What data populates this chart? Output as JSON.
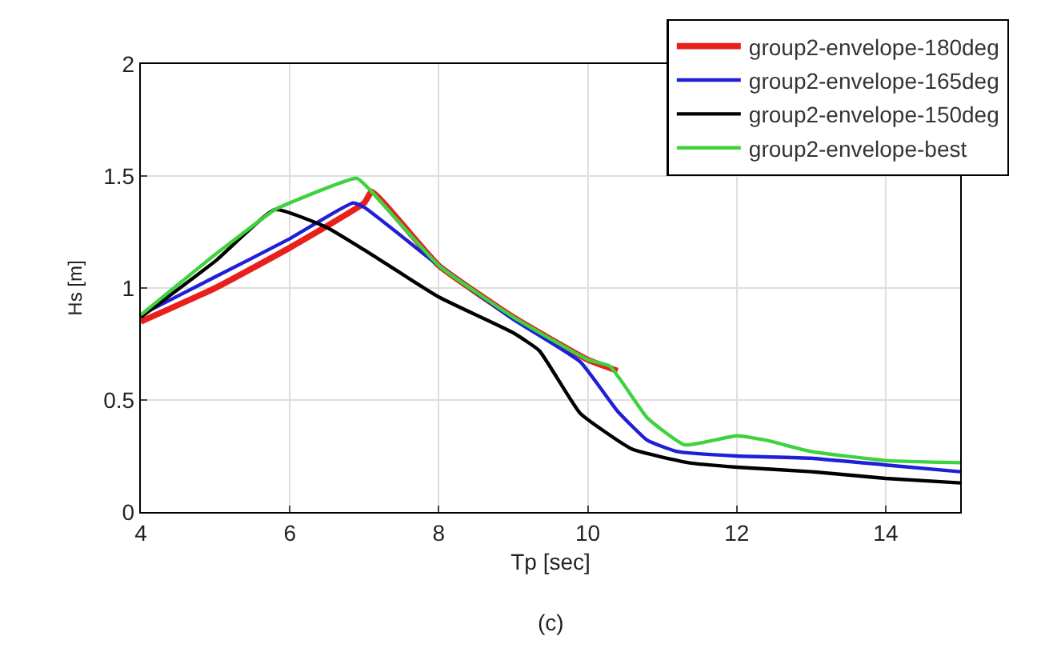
{
  "chart_data": {
    "type": "line",
    "xlabel": "Tp [sec]",
    "ylabel": "Hs [m]",
    "annotations": [
      "(c)"
    ],
    "xlim": [
      4,
      15
    ],
    "xticks": [
      4,
      6,
      8,
      10,
      12,
      14
    ],
    "ylim": [
      0,
      2
    ],
    "yticks": [
      0,
      0.5,
      1,
      1.5,
      2
    ],
    "grid": true,
    "legend": "top right",
    "marker": "none",
    "line_style": "solid",
    "series": [
      {
        "name": "group2-envelope-180deg",
        "color": "#e8201c",
        "x": [
          4,
          5,
          6,
          7,
          7.1,
          8,
          9,
          10,
          10.4
        ],
        "values": [
          0.85,
          1.0,
          1.18,
          1.38,
          1.43,
          1.1,
          0.87,
          0.68,
          0.63
        ]
      },
      {
        "name": "group2-envelope-165deg",
        "color": "#1f1fd8",
        "x": [
          4,
          5,
          6,
          6.85,
          7,
          8,
          9,
          9.9,
          10.4,
          10.8,
          11.2,
          12,
          13,
          14,
          15
        ],
        "values": [
          0.88,
          1.05,
          1.22,
          1.38,
          1.36,
          1.1,
          0.86,
          0.67,
          0.45,
          0.32,
          0.27,
          0.25,
          0.24,
          0.21,
          0.18
        ]
      },
      {
        "name": "group2-envelope-150deg",
        "color": "#000000",
        "x": [
          4,
          5,
          5.8,
          6.5,
          7,
          8,
          9,
          9.35,
          9.9,
          10.6,
          11.35,
          12,
          13,
          14,
          15
        ],
        "values": [
          0.87,
          1.12,
          1.35,
          1.27,
          1.17,
          0.96,
          0.8,
          0.72,
          0.44,
          0.28,
          0.22,
          0.2,
          0.18,
          0.15,
          0.13
        ]
      },
      {
        "name": "group2-envelope-best",
        "color": "#3fd23f",
        "x": [
          4,
          5,
          5.8,
          6,
          6.9,
          7.1,
          8,
          9,
          10,
          10.3,
          10.8,
          11.3,
          12,
          12.4,
          13,
          14,
          15
        ],
        "values": [
          0.88,
          1.15,
          1.35,
          1.38,
          1.49,
          1.43,
          1.1,
          0.87,
          0.68,
          0.65,
          0.42,
          0.3,
          0.34,
          0.32,
          0.27,
          0.23,
          0.22
        ]
      }
    ]
  }
}
